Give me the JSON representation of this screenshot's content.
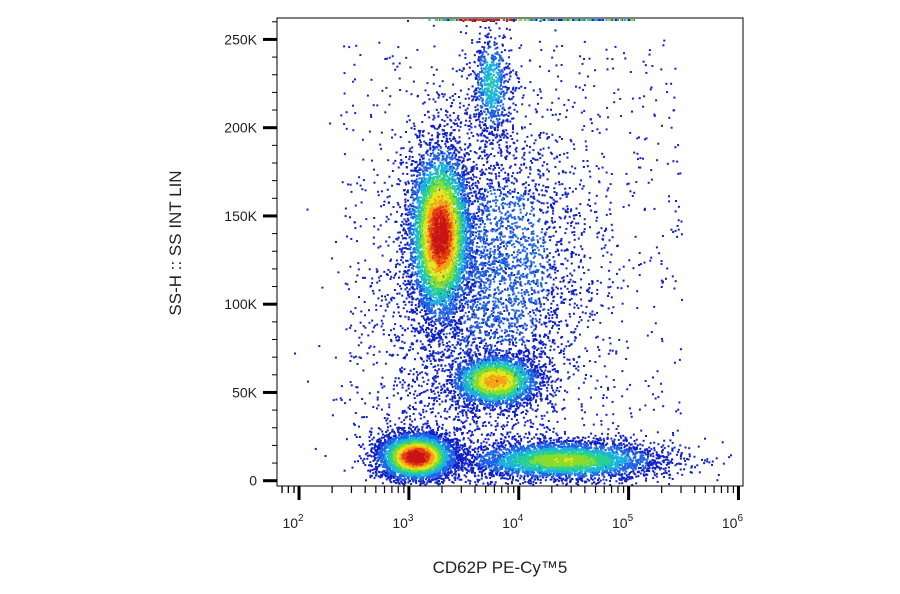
{
  "chart_data": {
    "type": "scatter",
    "title": "",
    "xlabel": "CD62P PE-Cy™5",
    "ylabel": "SS-H :: SS INT LIN",
    "x_scale": "log",
    "xlim": [
      63,
      1100000
    ],
    "ylim": [
      -3000,
      262144
    ],
    "x_ticks": [
      {
        "base": "10",
        "exp": "2",
        "value": 100
      },
      {
        "base": "10",
        "exp": "3",
        "value": 1000
      },
      {
        "base": "10",
        "exp": "4",
        "value": 10000
      },
      {
        "base": "10",
        "exp": "5",
        "value": 100000
      },
      {
        "base": "10",
        "exp": "6",
        "value": 1000000
      }
    ],
    "y_ticks": [
      {
        "label": "0",
        "value": 0
      },
      {
        "label": "50K",
        "value": 50000
      },
      {
        "label": "100K",
        "value": 100000
      },
      {
        "label": "150K",
        "value": 150000
      },
      {
        "label": "200K",
        "value": 200000
      },
      {
        "label": "250K",
        "value": 250000
      }
    ],
    "color_scale": [
      "#1020c8",
      "#1e64e6",
      "#19b4dc",
      "#28d28c",
      "#8cdc28",
      "#e6e61e",
      "#f5a014",
      "#e63c14",
      "#c81414"
    ],
    "populations": [
      {
        "x_center": 1900,
        "y_center": 140000,
        "x_spread_decades": 0.14,
        "y_spread": 24000,
        "points": 5200,
        "peak_density": 1.0
      },
      {
        "x_center": 1150,
        "y_center": 14000,
        "x_spread_decades": 0.17,
        "y_spread": 6500,
        "points": 4200,
        "peak_density": 1.0
      },
      {
        "x_center": 6000,
        "y_center": 57000,
        "x_spread_decades": 0.2,
        "y_spread": 7500,
        "points": 2300,
        "peak_density": 0.75
      },
      {
        "x_center": 25000,
        "y_center": 12000,
        "x_spread_decades": 0.45,
        "y_spread": 5500,
        "points": 3800,
        "peak_density": 0.55
      },
      {
        "x_center": 5500,
        "y_center": 225000,
        "x_spread_decades": 0.09,
        "y_spread": 16000,
        "points": 650,
        "peak_density": 0.35
      },
      {
        "x_center": 7000,
        "y_center": 120000,
        "x_spread_decades": 0.4,
        "y_spread": 45000,
        "points": 2600,
        "peak_density": 0.2
      },
      {
        "x_center": 3000,
        "y_center": 80000,
        "x_spread_decades": 0.5,
        "y_spread": 60000,
        "points": 1600,
        "peak_density": 0.12
      }
    ]
  }
}
